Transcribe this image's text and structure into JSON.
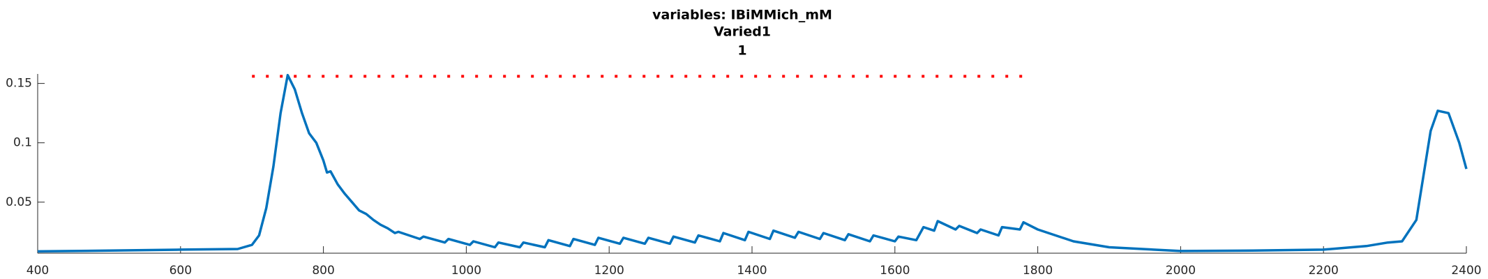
{
  "chart_data": {
    "type": "line",
    "title_lines": [
      "variables: IBiMMich_mM",
      "Varied1",
      "1"
    ],
    "x": [
      400,
      500,
      600,
      680,
      700,
      710,
      720,
      730,
      740,
      750,
      760,
      770,
      780,
      790,
      800,
      805,
      810,
      820,
      830,
      840,
      850,
      860,
      870,
      880,
      890,
      900,
      905,
      935,
      940,
      970,
      975,
      1005,
      1010,
      1040,
      1045,
      1075,
      1080,
      1110,
      1115,
      1145,
      1150,
      1180,
      1185,
      1215,
      1220,
      1250,
      1255,
      1285,
      1290,
      1320,
      1325,
      1355,
      1360,
      1390,
      1395,
      1425,
      1430,
      1460,
      1465,
      1495,
      1500,
      1530,
      1535,
      1565,
      1570,
      1600,
      1605,
      1630,
      1640,
      1655,
      1660,
      1685,
      1690,
      1715,
      1720,
      1745,
      1750,
      1775,
      1780,
      1800,
      1850,
      1900,
      2000,
      2100,
      2200,
      2260,
      2290,
      2310,
      2330,
      2350,
      2360,
      2375,
      2390,
      2400
    ],
    "values": [
      0.0085,
      0.0092,
      0.01,
      0.0105,
      0.014,
      0.022,
      0.045,
      0.08,
      0.125,
      0.157,
      0.145,
      0.125,
      0.108,
      0.1,
      0.085,
      0.075,
      0.076,
      0.065,
      0.057,
      0.05,
      0.043,
      0.04,
      0.035,
      0.031,
      0.028,
      0.024,
      0.025,
      0.019,
      0.021,
      0.016,
      0.019,
      0.014,
      0.017,
      0.012,
      0.016,
      0.012,
      0.016,
      0.012,
      0.018,
      0.013,
      0.019,
      0.014,
      0.02,
      0.015,
      0.02,
      0.015,
      0.02,
      0.015,
      0.021,
      0.016,
      0.022,
      0.017,
      0.024,
      0.018,
      0.025,
      0.019,
      0.026,
      0.02,
      0.025,
      0.019,
      0.024,
      0.018,
      0.023,
      0.017,
      0.022,
      0.017,
      0.021,
      0.018,
      0.029,
      0.026,
      0.034,
      0.027,
      0.03,
      0.024,
      0.027,
      0.022,
      0.029,
      0.027,
      0.033,
      0.027,
      0.017,
      0.012,
      0.0088,
      0.0092,
      0.01,
      0.013,
      0.016,
      0.017,
      0.035,
      0.11,
      0.127,
      0.125,
      0.1,
      0.078
    ],
    "color": "#0072bd",
    "reference_line": {
      "y": 0.156,
      "x": [
        700,
        1780
      ],
      "color": "#ff0000"
    },
    "xlim": [
      400,
      2400
    ],
    "xticks": [
      400,
      600,
      800,
      1000,
      1200,
      1400,
      1600,
      1800,
      2000,
      2200,
      2400
    ],
    "ylim": [
      0.007,
      0.158
    ],
    "yticks": [
      0.05,
      0.1,
      0.15
    ]
  }
}
